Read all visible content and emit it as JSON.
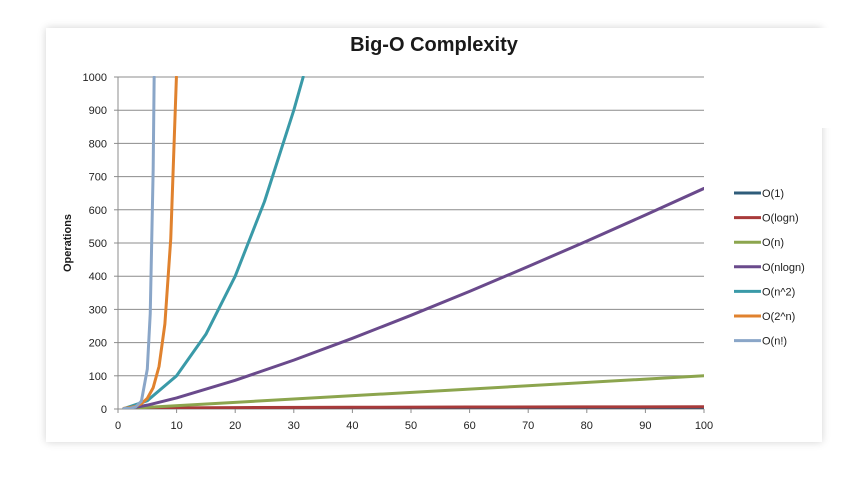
{
  "chart_data": {
    "type": "line",
    "title": "Big-O Complexity",
    "xlabel": "",
    "ylabel": "Operations",
    "xlim": [
      0,
      100
    ],
    "ylim": [
      0,
      1000
    ],
    "x_ticks": [
      "0",
      "10",
      "20",
      "30",
      "40",
      "50",
      "60",
      "70",
      "80",
      "90",
      "100"
    ],
    "y_ticks": [
      "0",
      "100",
      "200",
      "300",
      "400",
      "500",
      "600",
      "700",
      "800",
      "900",
      "1000"
    ],
    "grid": "horizontal",
    "legend_position": "right",
    "series": [
      {
        "name": "O(1)",
        "color": "#2f5c7a",
        "points": [
          [
            1,
            1
          ],
          [
            100,
            1
          ]
        ]
      },
      {
        "name": "O(logn)",
        "color": "#a83a3a",
        "points": [
          [
            2,
            1
          ],
          [
            10,
            3.3
          ],
          [
            20,
            4.3
          ],
          [
            40,
            5.3
          ],
          [
            60,
            5.9
          ],
          [
            80,
            6.3
          ],
          [
            100,
            6.6
          ]
        ]
      },
      {
        "name": "O(n)",
        "color": "#8ca54e",
        "points": [
          [
            1,
            1
          ],
          [
            100,
            100
          ]
        ]
      },
      {
        "name": "O(nlogn)",
        "color": "#6a4a8c",
        "points": [
          [
            2,
            2
          ],
          [
            5,
            11.6
          ],
          [
            10,
            33.2
          ],
          [
            20,
            86.4
          ],
          [
            30,
            147.2
          ],
          [
            40,
            212.9
          ],
          [
            50,
            282.2
          ],
          [
            60,
            354.4
          ],
          [
            70,
            429.1
          ],
          [
            80,
            505.8
          ],
          [
            90,
            584.3
          ],
          [
            100,
            664.4
          ]
        ]
      },
      {
        "name": "O(n^2)",
        "color": "#3a9aa8",
        "points": [
          [
            1,
            1
          ],
          [
            5,
            25
          ],
          [
            10,
            100
          ],
          [
            15,
            225
          ],
          [
            20,
            400
          ],
          [
            25,
            625
          ],
          [
            30,
            900
          ],
          [
            31.6,
            1000
          ]
        ]
      },
      {
        "name": "O(2^n)",
        "color": "#e0822e",
        "points": [
          [
            1,
            2
          ],
          [
            2,
            4
          ],
          [
            3,
            8
          ],
          [
            4,
            16
          ],
          [
            5,
            32
          ],
          [
            6,
            64
          ],
          [
            7,
            128
          ],
          [
            8,
            256
          ],
          [
            9,
            512
          ],
          [
            9.97,
            1000
          ]
        ]
      },
      {
        "name": "O(n!)",
        "color": "#8aa6c8",
        "points": [
          [
            1,
            1
          ],
          [
            2,
            2
          ],
          [
            3,
            6
          ],
          [
            4,
            24
          ],
          [
            5,
            120
          ],
          [
            5.5,
            287
          ],
          [
            6,
            720
          ],
          [
            6.17,
            1000
          ]
        ]
      }
    ]
  }
}
